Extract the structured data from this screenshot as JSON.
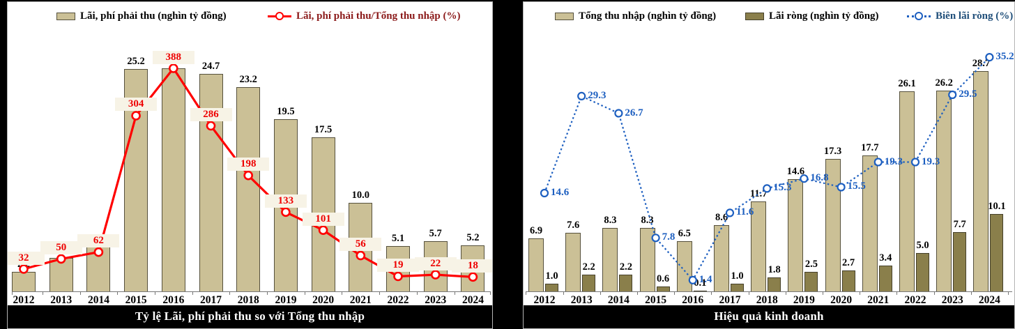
{
  "chart_data": [
    {
      "type": "combo-bar-line",
      "title": "Tỷ lệ Lãi, phí phải thu so với Tổng thu nhập",
      "legend_position": "top",
      "grid": false,
      "y_axis_visible": false,
      "categories": [
        "2012",
        "2013",
        "2014",
        "2015",
        "2016",
        "2017",
        "2018",
        "2019",
        "2020",
        "2021",
        "2022",
        "2023",
        "2024"
      ],
      "series": [
        {
          "name": "Lãi, phí phải thu (nghìn tỷ đồng)",
          "type": "bar",
          "color": "#CBC096",
          "border_color": "#55503C",
          "legend_color": "#000000",
          "label_color": "#000000",
          "values": [
            2.2,
            3.8,
            5.1,
            25.2,
            25.3,
            24.7,
            23.2,
            19.5,
            17.5,
            10.0,
            5.1,
            5.7,
            5.2
          ],
          "labels": [
            "2.2",
            "3.8",
            "5.1",
            "25.2",
            "25.3",
            "24.7",
            "23.2",
            "19.5",
            "17.5",
            "10.0",
            "5.1",
            "5.7",
            "5.2"
          ],
          "note": "2012 and 2013 data labels are occluded by the red line callout boxes in the image"
        },
        {
          "name": "Lãi, phí phải thu/Tổng thu nhập (%)",
          "type": "line",
          "style": "solid",
          "marker": "open-circle",
          "color": "#FF0000",
          "legend_color": "#8B1A1A",
          "label_color": "#EE0000",
          "label_bg": "#F7F3E6",
          "values": [
            32,
            50,
            62,
            304,
            388,
            286,
            198,
            133,
            101,
            56,
            19,
            22,
            18
          ],
          "labels": [
            "32",
            "50",
            "62",
            "304",
            "388",
            "286",
            "198",
            "133",
            "101",
            "56",
            "19",
            "22",
            "18"
          ]
        }
      ]
    },
    {
      "type": "combo-bar-line",
      "title": "Hiệu quả kinh doanh",
      "legend_position": "top",
      "grid": false,
      "y_axis_visible": false,
      "categories": [
        "2012",
        "2013",
        "2014",
        "2015",
        "2016",
        "2017",
        "2018",
        "2019",
        "2020",
        "2021",
        "2022",
        "2023",
        "2024"
      ],
      "series": [
        {
          "name": "Tổng thu nhập (nghìn tỷ đồng)",
          "type": "bar",
          "color": "#CBC096",
          "border_color": "#55503C",
          "legend_color": "#000000",
          "label_color": "#000000",
          "values": [
            6.9,
            7.6,
            8.3,
            8.3,
            6.5,
            8.6,
            11.7,
            14.6,
            17.3,
            17.7,
            26.1,
            26.2,
            28.7
          ],
          "labels": [
            "6.9",
            "7.6",
            "8.3",
            "8.3",
            "6.5",
            "8.6",
            "11.7",
            "14.6",
            "17.3",
            "17.7",
            "26.1",
            "26.2",
            "28.7"
          ]
        },
        {
          "name": "Lãi ròng (nghìn tỷ đồng)",
          "type": "bar",
          "color": "#8A7F4B",
          "border_color": "#45402A",
          "legend_color": "#000000",
          "label_color": "#000000",
          "values": [
            1.0,
            2.2,
            2.2,
            0.6,
            0.1,
            1.0,
            1.8,
            2.5,
            2.7,
            3.4,
            5.0,
            7.7,
            10.1
          ],
          "labels": [
            "1.0",
            "2.2",
            "2.2",
            "0.6",
            "0.1",
            "1.0",
            "1.8",
            "2.5",
            "2.7",
            "3.4",
            "5.0",
            "7.7",
            "10.1"
          ]
        },
        {
          "name": "Biên lãi ròng (%)",
          "type": "line",
          "style": "dotted",
          "marker": "open-circle",
          "color": "#1D5FC0",
          "legend_color": "#1F4E79",
          "label_color": "#1D5FC0",
          "values": [
            14.6,
            29.3,
            26.7,
            7.8,
            1.4,
            11.6,
            15.3,
            16.8,
            15.5,
            19.3,
            19.3,
            29.5,
            35.2
          ],
          "labels": [
            "14.6",
            "29.3",
            "26.7",
            "7.8",
            "1.4",
            "11.6",
            "15.3",
            "16.8",
            "15.5",
            "19.3",
            "19.3",
            "29.5",
            "35.2"
          ]
        }
      ]
    }
  ]
}
